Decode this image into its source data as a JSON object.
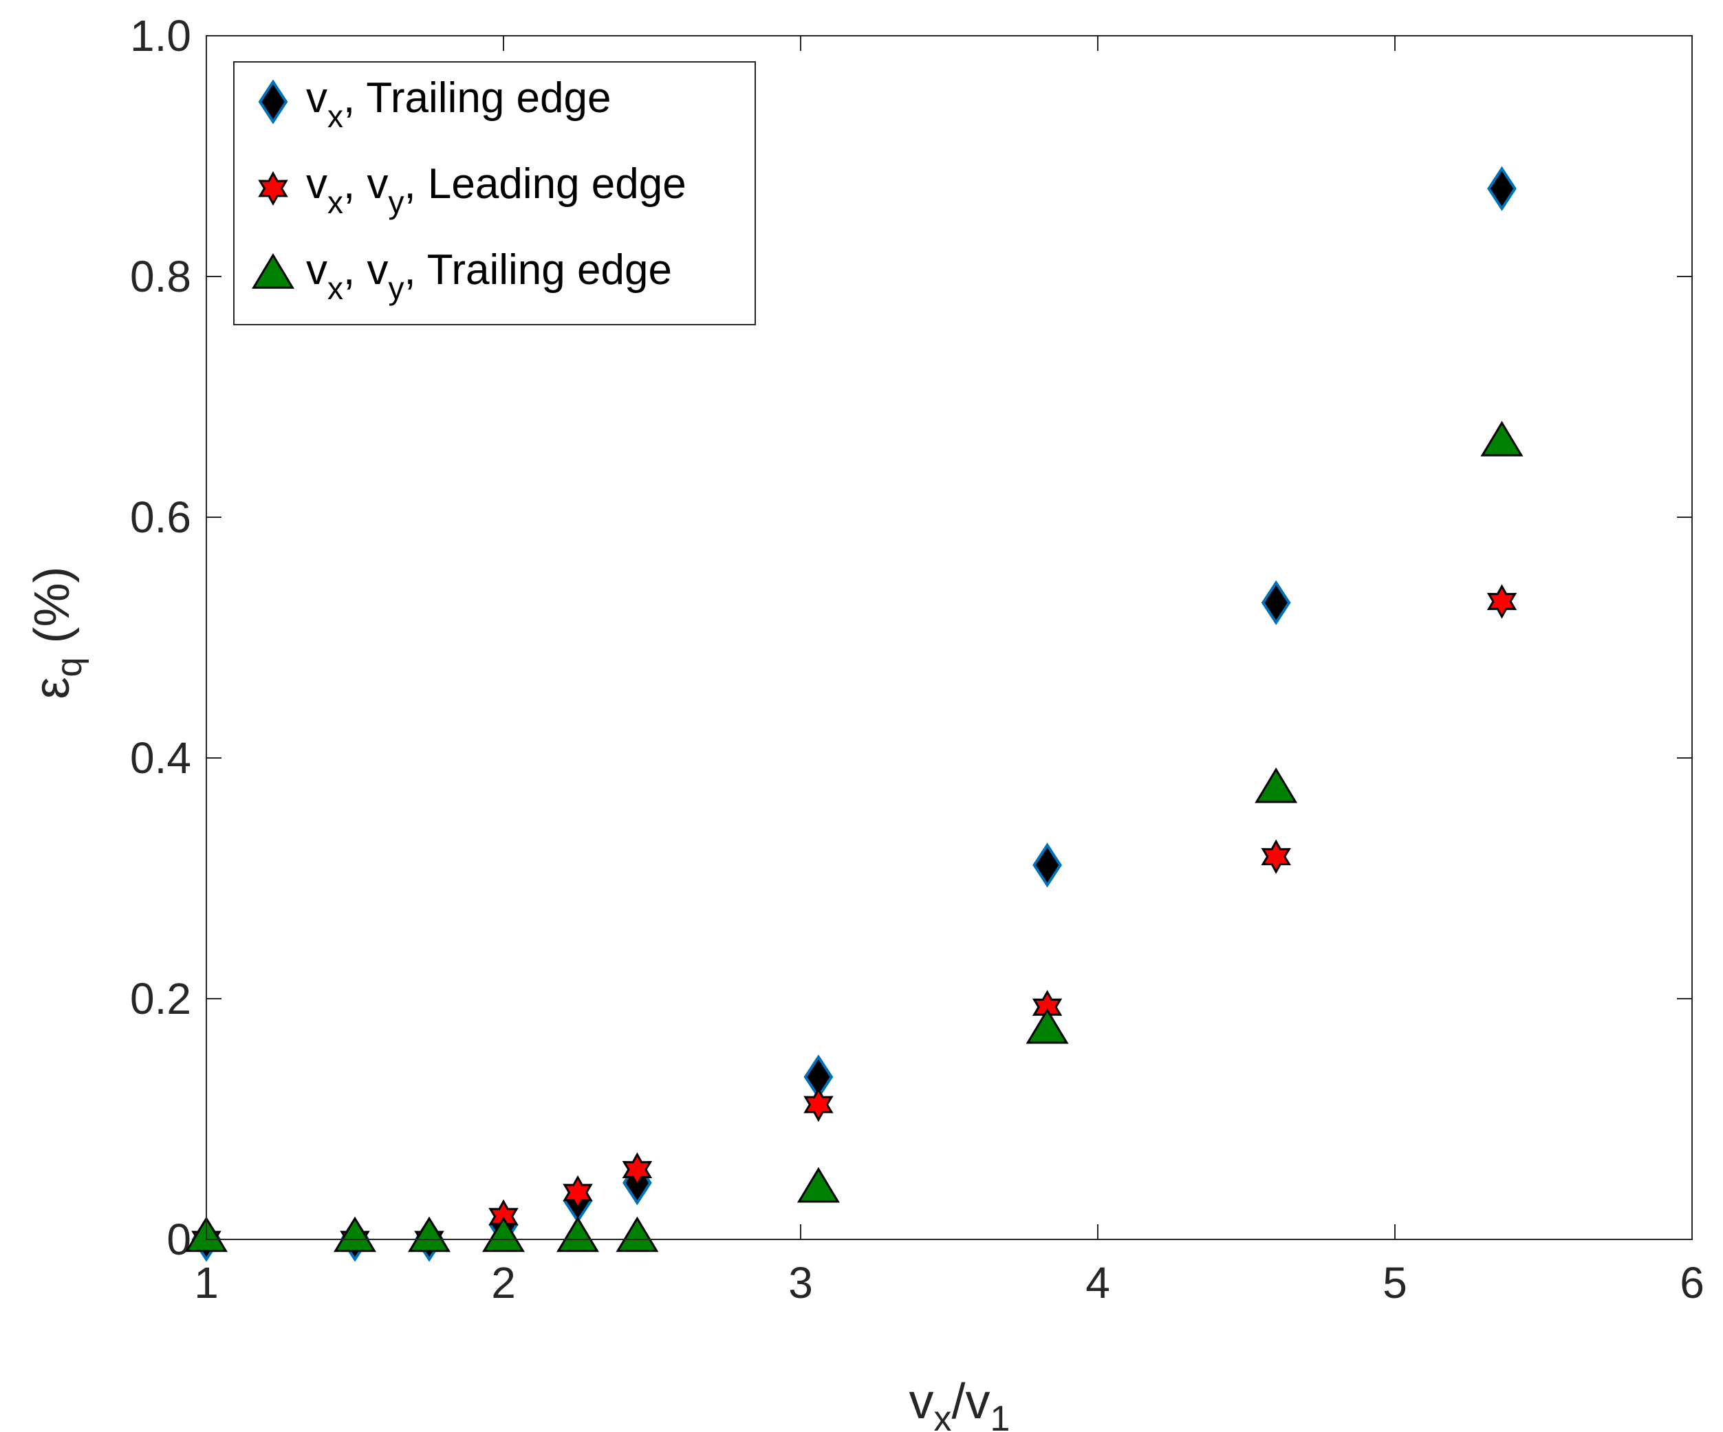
{
  "chart_data": {
    "type": "scatter",
    "xlim": [
      1,
      6
    ],
    "ylim": [
      0,
      1
    ],
    "xticks": [
      "1",
      "2",
      "3",
      "4",
      "5",
      "6"
    ],
    "yticks": [
      "0",
      "0.2",
      "0.4",
      "0.6",
      "0.8",
      "1.0"
    ],
    "xlabel": {
      "main": "v",
      "sub": "x",
      "mid": "/v",
      "sub2": "1"
    },
    "ylabel": {
      "main": "ε",
      "sub": "q",
      "tail": " (%)"
    },
    "grid": false,
    "legend_position": "top-left",
    "series": [
      {
        "label_main": "v",
        "label_sub": "x",
        "label_tail": ", Trailing edge",
        "marker": "diamond",
        "fill": "#000000",
        "stroke": "#0072BD",
        "x": [
          1.0,
          1.5,
          1.75,
          2.0,
          2.25,
          2.45,
          3.06,
          3.83,
          4.6,
          5.36
        ],
        "y": [
          0.0,
          0.0,
          0.0,
          0.012,
          0.032,
          0.047,
          0.135,
          0.311,
          0.529,
          0.873
        ]
      },
      {
        "label_main": "v",
        "label_sub": "x",
        "label_mid": ", v",
        "label_sub2": "y",
        "label_tail": ", Leading edge",
        "marker": "hexagram",
        "fill": "#FF0000",
        "stroke": "#000000",
        "x": [
          1.0,
          1.5,
          1.75,
          2.0,
          2.25,
          2.45,
          3.06,
          3.83,
          4.6,
          5.36
        ],
        "y": [
          0.0,
          0.0,
          0.0,
          0.019,
          0.039,
          0.058,
          0.112,
          0.193,
          0.318,
          0.53
        ]
      },
      {
        "label_main": "v",
        "label_sub": "x",
        "label_mid": ", v",
        "label_sub2": "y",
        "label_tail": ", Trailing edge",
        "marker": "triangle",
        "fill": "#008000",
        "stroke": "#000000",
        "x": [
          1.0,
          1.5,
          1.75,
          2.0,
          2.25,
          2.45,
          3.06,
          3.83,
          4.6,
          5.36
        ],
        "y": [
          0.002,
          0.002,
          0.002,
          0.002,
          0.002,
          0.002,
          0.043,
          0.175,
          0.375,
          0.663
        ]
      }
    ]
  }
}
